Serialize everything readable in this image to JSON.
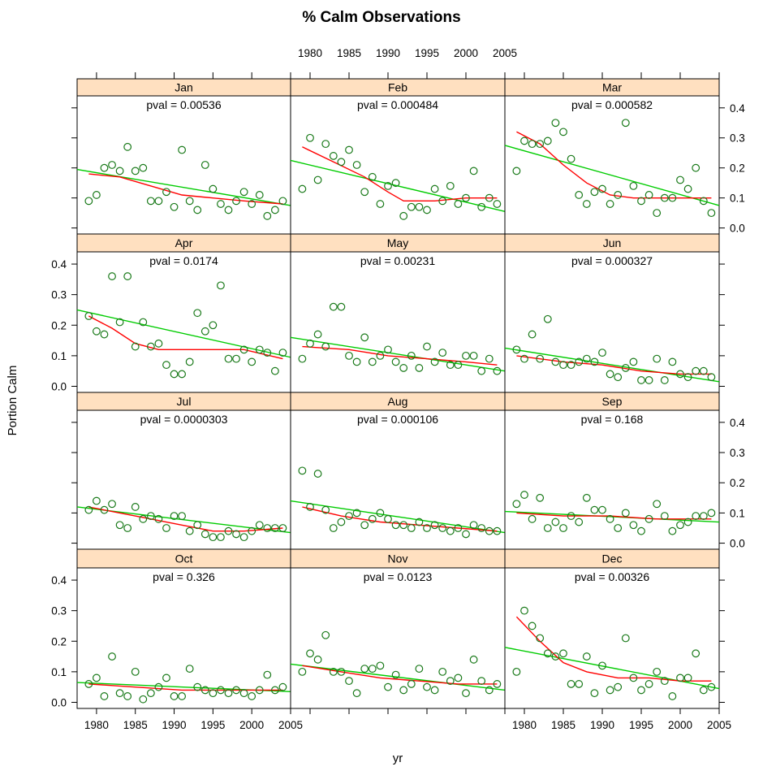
{
  "chart_data": {
    "type": "scatter",
    "title": "% Calm Observations",
    "xlabel": "yr",
    "ylabel": "Portion Calm",
    "xlim": [
      1977.5,
      2005
    ],
    "ylim": [
      -0.02,
      0.44
    ],
    "x_ticks": [
      1980,
      1985,
      1990,
      1995,
      2000,
      2005
    ],
    "y_ticks": [
      0.0,
      0.1,
      0.2,
      0.3,
      0.4
    ],
    "x_tick_labels": [
      "1980",
      "1985",
      "1990",
      "1995",
      "2000",
      "2005"
    ],
    "y_tick_labels": [
      "0.0",
      "0.1",
      "0.2",
      "0.3",
      "0.4"
    ],
    "colors": {
      "points": "#1a7a1a",
      "trend": "#00cc00",
      "loess": "#ff0000",
      "strip": "#ffe0c0",
      "frame": "#000000"
    },
    "panels": [
      {
        "month": "Jan",
        "pval_text": "pval = 0.00536",
        "years": [
          1979,
          1980,
          1981,
          1982,
          1983,
          1984,
          1985,
          1986,
          1987,
          1988,
          1989,
          1990,
          1991,
          1992,
          1993,
          1994,
          1995,
          1996,
          1997,
          1998,
          1999,
          2000,
          2001,
          2002,
          2003,
          2004
        ],
        "values": [
          0.09,
          0.11,
          0.2,
          0.21,
          0.19,
          0.27,
          0.19,
          0.2,
          0.09,
          0.09,
          0.12,
          0.07,
          0.26,
          0.09,
          0.06,
          0.21,
          0.13,
          0.08,
          0.06,
          0.09,
          0.12,
          0.08,
          0.11,
          0.04,
          0.06,
          0.09
        ],
        "linear": [
          0.195,
          0.075
        ],
        "loess": [
          [
            1979,
            0.18
          ],
          [
            1983,
            0.17
          ],
          [
            1987,
            0.14
          ],
          [
            1991,
            0.11
          ],
          [
            1995,
            0.1
          ],
          [
            1999,
            0.09
          ],
          [
            2004,
            0.08
          ]
        ]
      },
      {
        "month": "Feb",
        "pval_text": "pval = 0.000484",
        "years": [
          1979,
          1980,
          1981,
          1982,
          1983,
          1984,
          1985,
          1986,
          1987,
          1988,
          1989,
          1990,
          1991,
          1992,
          1993,
          1994,
          1995,
          1996,
          1997,
          1998,
          1999,
          2000,
          2001,
          2002,
          2003,
          2004
        ],
        "values": [
          0.13,
          0.3,
          0.16,
          0.28,
          0.24,
          0.22,
          0.26,
          0.21,
          0.12,
          0.17,
          0.08,
          0.14,
          0.15,
          0.04,
          0.07,
          0.07,
          0.06,
          0.13,
          0.09,
          0.14,
          0.08,
          0.1,
          0.19,
          0.07,
          0.1,
          0.08
        ],
        "linear": [
          0.225,
          0.055
        ],
        "loess": [
          [
            1979,
            0.27
          ],
          [
            1983,
            0.22
          ],
          [
            1987,
            0.17
          ],
          [
            1990,
            0.12
          ],
          [
            1992,
            0.09
          ],
          [
            1996,
            0.09
          ],
          [
            2000,
            0.1
          ],
          [
            2004,
            0.1
          ]
        ]
      },
      {
        "month": "Mar",
        "pval_text": "pval = 0.000582",
        "years": [
          1979,
          1980,
          1981,
          1982,
          1983,
          1984,
          1985,
          1986,
          1987,
          1988,
          1989,
          1990,
          1991,
          1992,
          1993,
          1994,
          1995,
          1996,
          1997,
          1998,
          1999,
          2000,
          2001,
          2002,
          2003,
          2004
        ],
        "values": [
          0.19,
          0.29,
          0.28,
          0.28,
          0.29,
          0.35,
          0.32,
          0.23,
          0.11,
          0.08,
          0.12,
          0.13,
          0.08,
          0.11,
          0.35,
          0.14,
          0.09,
          0.11,
          0.05,
          0.1,
          0.1,
          0.16,
          0.13,
          0.2,
          0.09,
          0.05
        ],
        "linear": [
          0.275,
          0.075
        ],
        "loess": [
          [
            1979,
            0.32
          ],
          [
            1982,
            0.28
          ],
          [
            1985,
            0.21
          ],
          [
            1988,
            0.15
          ],
          [
            1991,
            0.11
          ],
          [
            1994,
            0.1
          ],
          [
            1998,
            0.1
          ],
          [
            2004,
            0.1
          ]
        ]
      },
      {
        "month": "Apr",
        "pval_text": "pval = 0.0174",
        "years": [
          1979,
          1980,
          1981,
          1982,
          1983,
          1984,
          1985,
          1986,
          1987,
          1988,
          1989,
          1990,
          1991,
          1992,
          1993,
          1994,
          1995,
          1996,
          1997,
          1998,
          1999,
          2000,
          2001,
          2002,
          2003,
          2004
        ],
        "values": [
          0.23,
          0.18,
          0.17,
          0.36,
          0.21,
          0.36,
          0.13,
          0.21,
          0.13,
          0.14,
          0.07,
          0.04,
          0.04,
          0.08,
          0.24,
          0.18,
          0.2,
          0.33,
          0.09,
          0.09,
          0.12,
          0.08,
          0.12,
          0.11,
          0.05,
          0.11
        ],
        "linear": [
          0.25,
          0.095
        ],
        "loess": [
          [
            1979,
            0.23
          ],
          [
            1982,
            0.19
          ],
          [
            1985,
            0.14
          ],
          [
            1988,
            0.12
          ],
          [
            1991,
            0.12
          ],
          [
            1995,
            0.12
          ],
          [
            1999,
            0.12
          ],
          [
            2004,
            0.09
          ]
        ]
      },
      {
        "month": "May",
        "pval_text": "pval = 0.00231",
        "years": [
          1979,
          1980,
          1981,
          1982,
          1983,
          1984,
          1985,
          1986,
          1987,
          1988,
          1989,
          1990,
          1991,
          1992,
          1993,
          1994,
          1995,
          1996,
          1997,
          1998,
          1999,
          2000,
          2001,
          2002,
          2003,
          2004
        ],
        "values": [
          0.09,
          0.14,
          0.17,
          0.13,
          0.26,
          0.26,
          0.1,
          0.08,
          0.16,
          0.08,
          0.1,
          0.12,
          0.08,
          0.06,
          0.1,
          0.06,
          0.13,
          0.08,
          0.11,
          0.07,
          0.07,
          0.1,
          0.1,
          0.05,
          0.09,
          0.05
        ],
        "linear": [
          0.16,
          0.05
        ],
        "loess": [
          [
            1979,
            0.13
          ],
          [
            1985,
            0.12
          ],
          [
            1990,
            0.1
          ],
          [
            1995,
            0.09
          ],
          [
            2000,
            0.08
          ],
          [
            2004,
            0.07
          ]
        ]
      },
      {
        "month": "Jun",
        "pval_text": "pval = 0.000327",
        "years": [
          1979,
          1980,
          1981,
          1982,
          1983,
          1984,
          1985,
          1986,
          1987,
          1988,
          1989,
          1990,
          1991,
          1992,
          1993,
          1994,
          1995,
          1996,
          1997,
          1998,
          1999,
          2000,
          2001,
          2002,
          2003,
          2004
        ],
        "values": [
          0.12,
          0.09,
          0.17,
          0.09,
          0.22,
          0.08,
          0.07,
          0.07,
          0.08,
          0.09,
          0.08,
          0.11,
          0.04,
          0.03,
          0.06,
          0.08,
          0.02,
          0.02,
          0.09,
          0.02,
          0.08,
          0.04,
          0.03,
          0.05,
          0.05,
          0.03
        ],
        "linear": [
          0.125,
          0.015
        ],
        "loess": [
          [
            1979,
            0.1
          ],
          [
            1985,
            0.08
          ],
          [
            1990,
            0.07
          ],
          [
            1995,
            0.05
          ],
          [
            2000,
            0.04
          ],
          [
            2004,
            0.04
          ]
        ]
      },
      {
        "month": "Jul",
        "pval_text": "pval = 0.0000303",
        "years": [
          1979,
          1980,
          1981,
          1982,
          1983,
          1984,
          1985,
          1986,
          1987,
          1988,
          1989,
          1990,
          1991,
          1992,
          1993,
          1994,
          1995,
          1996,
          1997,
          1998,
          1999,
          2000,
          2001,
          2002,
          2003,
          2004
        ],
        "values": [
          0.11,
          0.14,
          0.11,
          0.13,
          0.06,
          0.05,
          0.12,
          0.08,
          0.09,
          0.08,
          0.05,
          0.09,
          0.09,
          0.04,
          0.06,
          0.03,
          0.02,
          0.02,
          0.04,
          0.03,
          0.02,
          0.04,
          0.06,
          0.05,
          0.05,
          0.05
        ],
        "linear": [
          0.12,
          0.035
        ],
        "loess": [
          [
            1979,
            0.12
          ],
          [
            1983,
            0.1
          ],
          [
            1987,
            0.08
          ],
          [
            1991,
            0.06
          ],
          [
            1995,
            0.04
          ],
          [
            1999,
            0.04
          ],
          [
            2004,
            0.05
          ]
        ]
      },
      {
        "month": "Aug",
        "pval_text": "pval = 0.000106",
        "years": [
          1979,
          1980,
          1981,
          1982,
          1983,
          1984,
          1985,
          1986,
          1987,
          1988,
          1989,
          1990,
          1991,
          1992,
          1993,
          1994,
          1995,
          1996,
          1997,
          1998,
          1999,
          2000,
          2001,
          2002,
          2003,
          2004
        ],
        "values": [
          0.24,
          0.12,
          0.23,
          0.11,
          0.05,
          0.07,
          0.09,
          0.1,
          0.06,
          0.08,
          0.1,
          0.08,
          0.06,
          0.06,
          0.05,
          0.07,
          0.05,
          0.06,
          0.05,
          0.04,
          0.05,
          0.03,
          0.06,
          0.05,
          0.04,
          0.04
        ],
        "linear": [
          0.14,
          0.035
        ],
        "loess": [
          [
            1979,
            0.12
          ],
          [
            1984,
            0.09
          ],
          [
            1989,
            0.07
          ],
          [
            1994,
            0.06
          ],
          [
            1999,
            0.05
          ],
          [
            2004,
            0.04
          ]
        ]
      },
      {
        "month": "Sep",
        "pval_text": "pval = 0.168",
        "years": [
          1979,
          1980,
          1981,
          1982,
          1983,
          1984,
          1985,
          1986,
          1987,
          1988,
          1989,
          1990,
          1991,
          1992,
          1993,
          1994,
          1995,
          1996,
          1997,
          1998,
          1999,
          2000,
          2001,
          2002,
          2003,
          2004
        ],
        "values": [
          0.13,
          0.16,
          0.08,
          0.15,
          0.05,
          0.07,
          0.05,
          0.09,
          0.07,
          0.15,
          0.11,
          0.11,
          0.08,
          0.05,
          0.1,
          0.06,
          0.04,
          0.08,
          0.13,
          0.09,
          0.04,
          0.06,
          0.07,
          0.09,
          0.09,
          0.1
        ],
        "linear": [
          0.105,
          0.07
        ],
        "loess": [
          [
            1979,
            0.1
          ],
          [
            1985,
            0.09
          ],
          [
            1991,
            0.09
          ],
          [
            1997,
            0.08
          ],
          [
            2004,
            0.08
          ]
        ]
      },
      {
        "month": "Oct",
        "pval_text": "pval = 0.326",
        "years": [
          1979,
          1980,
          1981,
          1982,
          1983,
          1984,
          1985,
          1986,
          1987,
          1988,
          1989,
          1990,
          1991,
          1992,
          1993,
          1994,
          1995,
          1996,
          1997,
          1998,
          1999,
          2000,
          2001,
          2002,
          2003,
          2004
        ],
        "values": [
          0.06,
          0.08,
          0.02,
          0.15,
          0.03,
          0.02,
          0.1,
          0.01,
          0.03,
          0.05,
          0.08,
          0.02,
          0.02,
          0.11,
          0.05,
          0.04,
          0.03,
          0.04,
          0.03,
          0.04,
          0.03,
          0.02,
          0.04,
          0.09,
          0.04,
          0.05
        ],
        "linear": [
          0.065,
          0.035
        ],
        "loess": [
          [
            1979,
            0.06
          ],
          [
            1985,
            0.05
          ],
          [
            1991,
            0.04
          ],
          [
            1997,
            0.04
          ],
          [
            2004,
            0.04
          ]
        ]
      },
      {
        "month": "Nov",
        "pval_text": "pval = 0.0123",
        "years": [
          1979,
          1980,
          1981,
          1982,
          1983,
          1984,
          1985,
          1986,
          1987,
          1988,
          1989,
          1990,
          1991,
          1992,
          1993,
          1994,
          1995,
          1996,
          1997,
          1998,
          1999,
          2000,
          2001,
          2002,
          2003,
          2004
        ],
        "values": [
          0.1,
          0.16,
          0.14,
          0.22,
          0.1,
          0.1,
          0.07,
          0.03,
          0.11,
          0.11,
          0.12,
          0.05,
          0.09,
          0.04,
          0.06,
          0.11,
          0.05,
          0.04,
          0.1,
          0.07,
          0.08,
          0.03,
          0.14,
          0.07,
          0.04,
          0.06
        ],
        "linear": [
          0.125,
          0.04
        ],
        "loess": [
          [
            1979,
            0.12
          ],
          [
            1984,
            0.1
          ],
          [
            1989,
            0.08
          ],
          [
            1994,
            0.07
          ],
          [
            1999,
            0.06
          ],
          [
            2004,
            0.06
          ]
        ]
      },
      {
        "month": "Dec",
        "pval_text": "pval = 0.00326",
        "years": [
          1979,
          1980,
          1981,
          1982,
          1983,
          1984,
          1985,
          1986,
          1987,
          1988,
          1989,
          1990,
          1991,
          1992,
          1993,
          1994,
          1995,
          1996,
          1997,
          1998,
          1999,
          2000,
          2001,
          2002,
          2003,
          2004
        ],
        "values": [
          0.1,
          0.3,
          0.25,
          0.21,
          0.16,
          0.15,
          0.16,
          0.06,
          0.06,
          0.15,
          0.03,
          0.12,
          0.04,
          0.05,
          0.21,
          0.08,
          0.04,
          0.06,
          0.1,
          0.07,
          0.02,
          0.08,
          0.08,
          0.16,
          0.04,
          0.05
        ],
        "linear": [
          0.18,
          0.045
        ],
        "loess": [
          [
            1979,
            0.28
          ],
          [
            1982,
            0.2
          ],
          [
            1985,
            0.13
          ],
          [
            1988,
            0.1
          ],
          [
            1992,
            0.08
          ],
          [
            1996,
            0.08
          ],
          [
            2000,
            0.07
          ],
          [
            2004,
            0.07
          ]
        ]
      }
    ]
  }
}
